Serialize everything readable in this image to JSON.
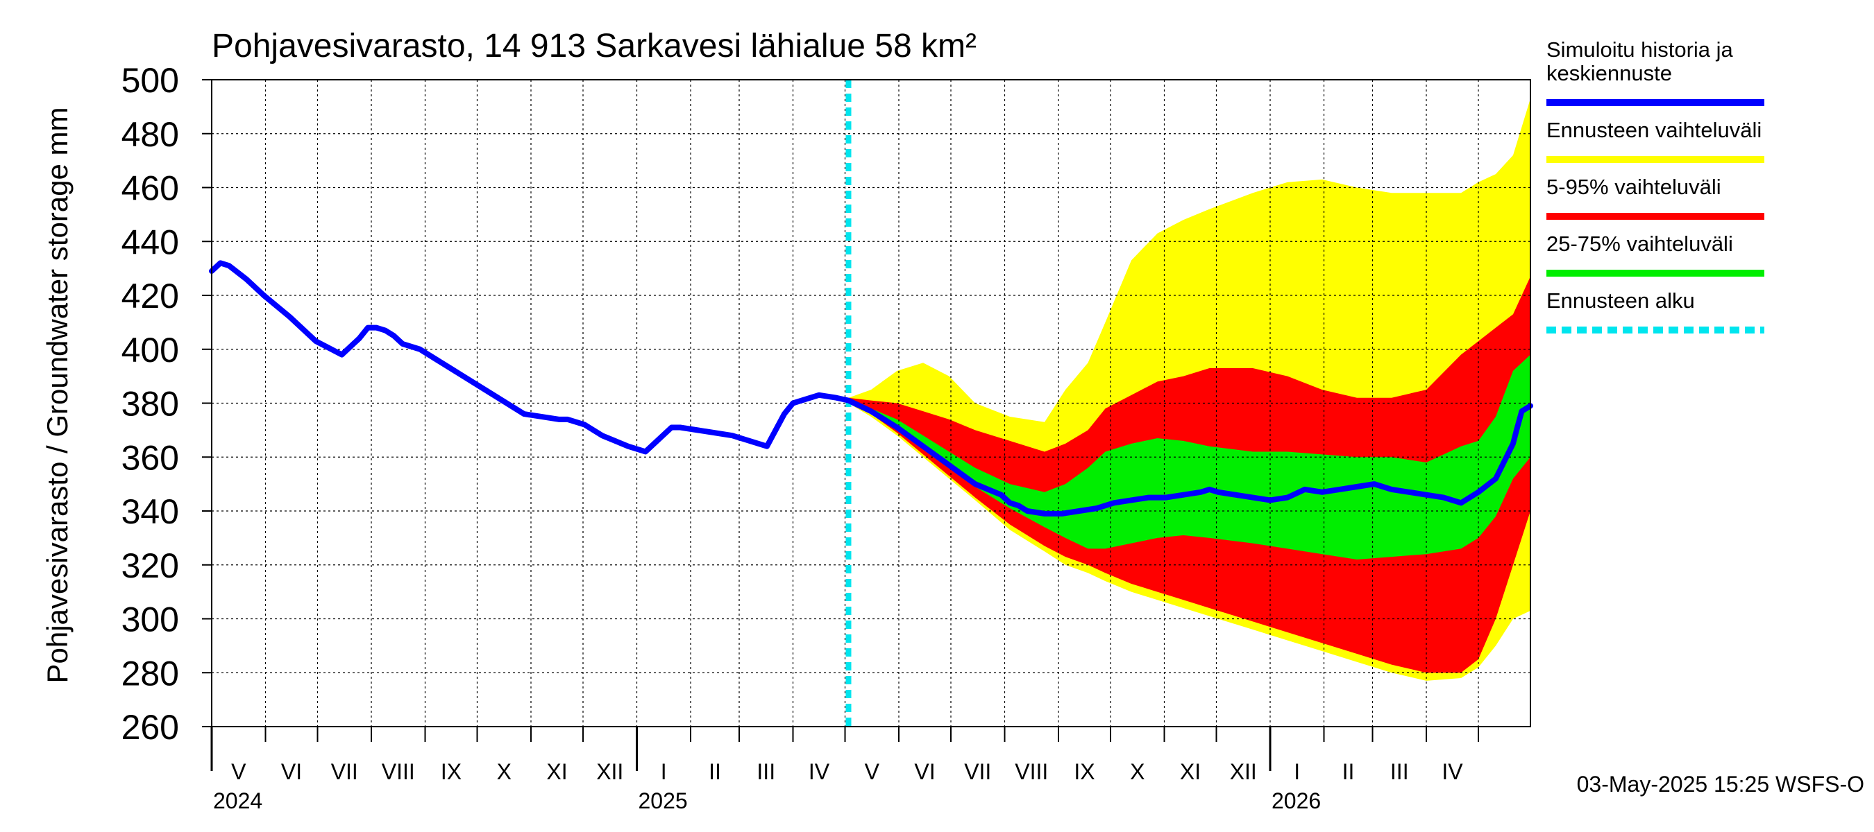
{
  "chart_data": {
    "type": "area",
    "title": "Pohjavesivarasto, 14 913 Sarkavesi lähialue 58 km²",
    "ylabel": "Pohjavesivarasto / Groundwater storage   mm",
    "ylim": [
      260,
      500
    ],
    "yticks": [
      260,
      280,
      300,
      320,
      340,
      360,
      380,
      400,
      420,
      440,
      460,
      480,
      500
    ],
    "xlim_days": [
      0,
      760
    ],
    "year_labels": [
      {
        "label": "2024",
        "day": 0
      },
      {
        "label": "2025",
        "day": 245
      },
      {
        "label": "2026",
        "day": 610
      }
    ],
    "month_boundaries": [
      0,
      31,
      61,
      92,
      123,
      153,
      184,
      214,
      245,
      276,
      304,
      335,
      365,
      396,
      426,
      457,
      488,
      518,
      549,
      579,
      610,
      641,
      669,
      700,
      730
    ],
    "month_labels": [
      "V",
      "VI",
      "VII",
      "VIII",
      "IX",
      "X",
      "XI",
      "XII",
      "I",
      "II",
      "III",
      "IV",
      "V",
      "VI",
      "VII",
      "VIII",
      "IX",
      "X",
      "XI",
      "XII",
      "I",
      "II",
      "III",
      "IV"
    ],
    "forecast_start_day": 367,
    "legend": {
      "placement": "right",
      "items": [
        {
          "label_lines": [
            "Simuloitu historia ja",
            "keskiennuste"
          ],
          "color": "#0000ff",
          "style": "solid"
        },
        {
          "label_lines": [
            "Ennusteen vaihteluväli"
          ],
          "color": "#ffff00",
          "style": "solid"
        },
        {
          "label_lines": [
            "5-95% vaihteluväli"
          ],
          "color": "#ff0000",
          "style": "solid"
        },
        {
          "label_lines": [
            "25-75% vaihteluväli"
          ],
          "color": "#00ee00",
          "style": "solid"
        },
        {
          "label_lines": [
            "Ennusteen alku"
          ],
          "color": "#00e5ee",
          "style": "dashed"
        }
      ]
    },
    "series": [
      {
        "name": "Ennusteen vaihteluväli",
        "kind": "band",
        "color": "#ffff00",
        "x": [
          367,
          380,
          395,
          410,
          425,
          440,
          460,
          480,
          492,
          505,
          515,
          530,
          545,
          560,
          575,
          600,
          620,
          640,
          660,
          680,
          700,
          720,
          730,
          740,
          750,
          760
        ],
        "upper": [
          382,
          385,
          392,
          395,
          390,
          380,
          375,
          373,
          385,
          395,
          410,
          433,
          443,
          448,
          452,
          458,
          462,
          463,
          460,
          458,
          458,
          458,
          462,
          465,
          472,
          493
        ],
        "lower": [
          380,
          375,
          368,
          360,
          352,
          344,
          333,
          325,
          320,
          317,
          314,
          310,
          307,
          304,
          301,
          296,
          292,
          288,
          284,
          280,
          277,
          278,
          282,
          290,
          300,
          303
        ]
      },
      {
        "name": "5-95% vaihteluväli",
        "kind": "band",
        "color": "#ff0000",
        "x": [
          367,
          380,
          395,
          410,
          425,
          440,
          460,
          480,
          492,
          505,
          515,
          530,
          545,
          560,
          575,
          600,
          620,
          640,
          660,
          680,
          700,
          720,
          730,
          740,
          750,
          760
        ],
        "upper": [
          382,
          381,
          380,
          377,
          374,
          370,
          366,
          362,
          365,
          370,
          378,
          383,
          388,
          390,
          393,
          393,
          390,
          385,
          382,
          382,
          385,
          398,
          403,
          408,
          413,
          427
        ],
        "lower": [
          380,
          376,
          369,
          361,
          353,
          345,
          335,
          327,
          323,
          320,
          317,
          313,
          310,
          307,
          304,
          299,
          295,
          291,
          287,
          283,
          280,
          280,
          285,
          300,
          320,
          340
        ]
      },
      {
        "name": "25-75% vaihteluväli",
        "kind": "band",
        "color": "#00ee00",
        "x": [
          367,
          380,
          395,
          410,
          425,
          440,
          460,
          480,
          492,
          505,
          515,
          530,
          545,
          560,
          575,
          600,
          620,
          640,
          660,
          680,
          700,
          720,
          730,
          740,
          750,
          760
        ],
        "upper": [
          381,
          378,
          374,
          368,
          362,
          356,
          350,
          347,
          350,
          356,
          362,
          365,
          367,
          366,
          364,
          362,
          362,
          361,
          360,
          360,
          358,
          364,
          366,
          375,
          392,
          398
        ],
        "lower": [
          380,
          377,
          372,
          364,
          356,
          349,
          341,
          334,
          330,
          326,
          326,
          328,
          330,
          331,
          330,
          328,
          326,
          324,
          322,
          323,
          324,
          326,
          330,
          338,
          352,
          360
        ]
      },
      {
        "name": "Simuloitu historia ja keskiennuste",
        "kind": "line",
        "color": "#0000ff",
        "x": [
          0,
          5,
          10,
          20,
          30,
          45,
          60,
          75,
          85,
          90,
          95,
          100,
          105,
          110,
          120,
          130,
          135,
          145,
          160,
          180,
          200,
          205,
          215,
          225,
          240,
          250,
          265,
          270,
          280,
          300,
          320,
          330,
          335,
          340,
          350,
          360,
          367,
          380,
          395,
          410,
          425,
          440,
          455,
          460,
          465,
          470,
          480,
          490,
          500,
          510,
          520,
          530,
          540,
          550,
          560,
          570,
          575,
          580,
          590,
          600,
          610,
          620,
          630,
          640,
          650,
          660,
          670,
          680,
          690,
          700,
          710,
          720,
          730,
          740,
          750,
          752,
          755,
          760
        ],
        "y": [
          429,
          432,
          431,
          426,
          420,
          412,
          403,
          398,
          404,
          408,
          408,
          407,
          405,
          402,
          400,
          396,
          394,
          390,
          384,
          376,
          374,
          374,
          372,
          368,
          364,
          362,
          371,
          371,
          370,
          368,
          364,
          376,
          380,
          381,
          383,
          382,
          381,
          377,
          371,
          364,
          357,
          350,
          346,
          343,
          342,
          340,
          339,
          339,
          340,
          341,
          343,
          344,
          345,
          345,
          346,
          347,
          348,
          347,
          346,
          345,
          344,
          345,
          348,
          347,
          348,
          349,
          350,
          348,
          347,
          346,
          345,
          343,
          347,
          352,
          365,
          370,
          377,
          379
        ]
      }
    ],
    "timestamp": "03-May-2025 15:25 WSFS-O"
  }
}
